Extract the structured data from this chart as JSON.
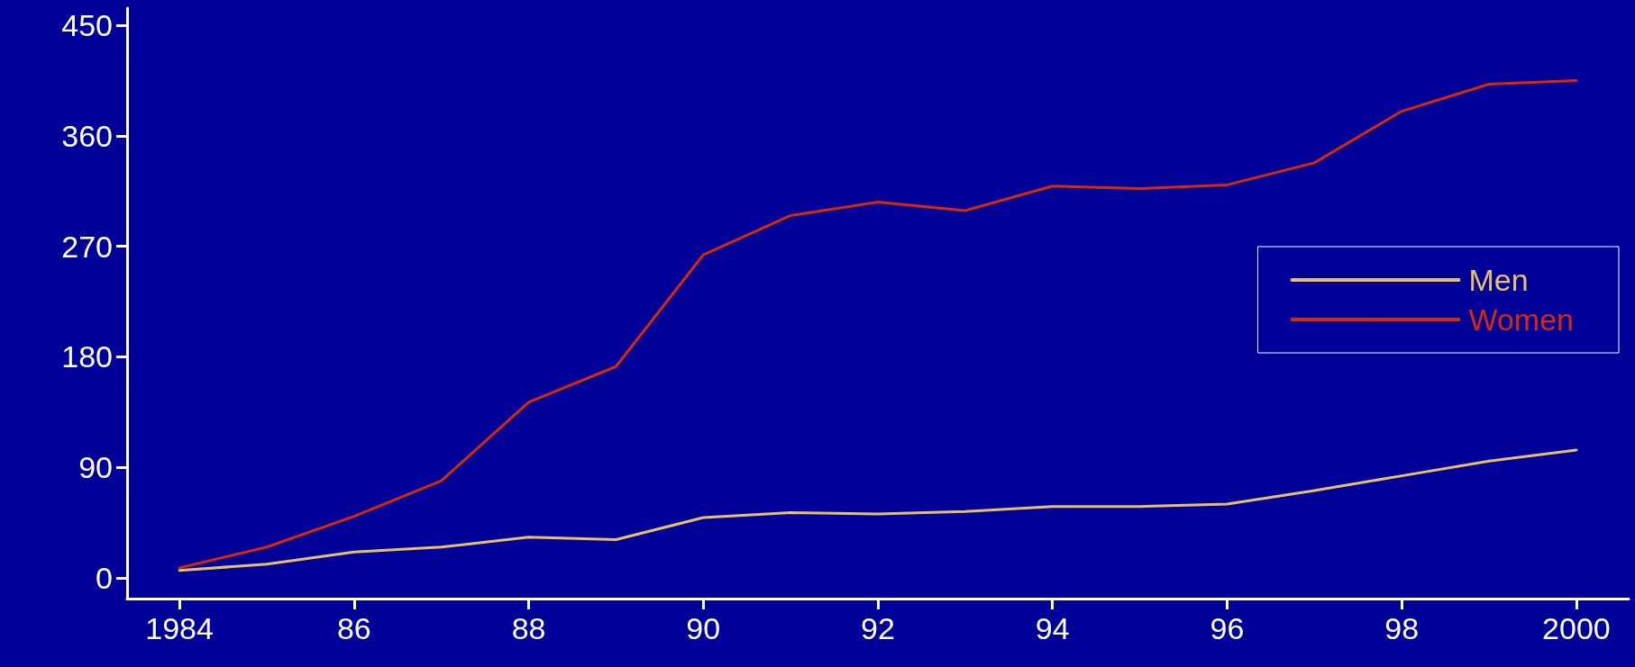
{
  "chart_data": {
    "type": "line",
    "x": [
      1984,
      1985,
      1986,
      1987,
      1988,
      1989,
      1990,
      1991,
      1992,
      1993,
      1994,
      1995,
      1996,
      1997,
      1998,
      1999,
      2000
    ],
    "series": [
      {
        "name": "Men",
        "color": "#e8c06a",
        "values": [
          6,
          11,
          21,
          25,
          33,
          31,
          49,
          53,
          52,
          54,
          58,
          58,
          60,
          71,
          83,
          95,
          104
        ]
      },
      {
        "name": "Women",
        "color": "#d42a0a",
        "values": [
          8,
          25,
          50,
          79,
          143,
          172,
          263,
          295,
          306,
          299,
          319,
          317,
          320,
          338,
          380,
          402,
          405
        ]
      }
    ],
    "xlim": [
      1983.4,
      2000.6
    ],
    "xticks": [
      1984,
      {
        "value": 1986,
        "label": "86"
      },
      {
        "value": 1988,
        "label": "88"
      },
      {
        "value": 1990,
        "label": "90"
      },
      {
        "value": 1992,
        "label": "92"
      },
      {
        "value": 1994,
        "label": "94"
      },
      {
        "value": 1996,
        "label": "96"
      },
      {
        "value": 1998,
        "label": "98"
      },
      2000
    ],
    "ylim": [
      -17,
      464
    ],
    "yticks": [
      0,
      90,
      180,
      270,
      360,
      450
    ],
    "grid": false,
    "legend": "right",
    "marker": "none",
    "line_style": "solid"
  }
}
